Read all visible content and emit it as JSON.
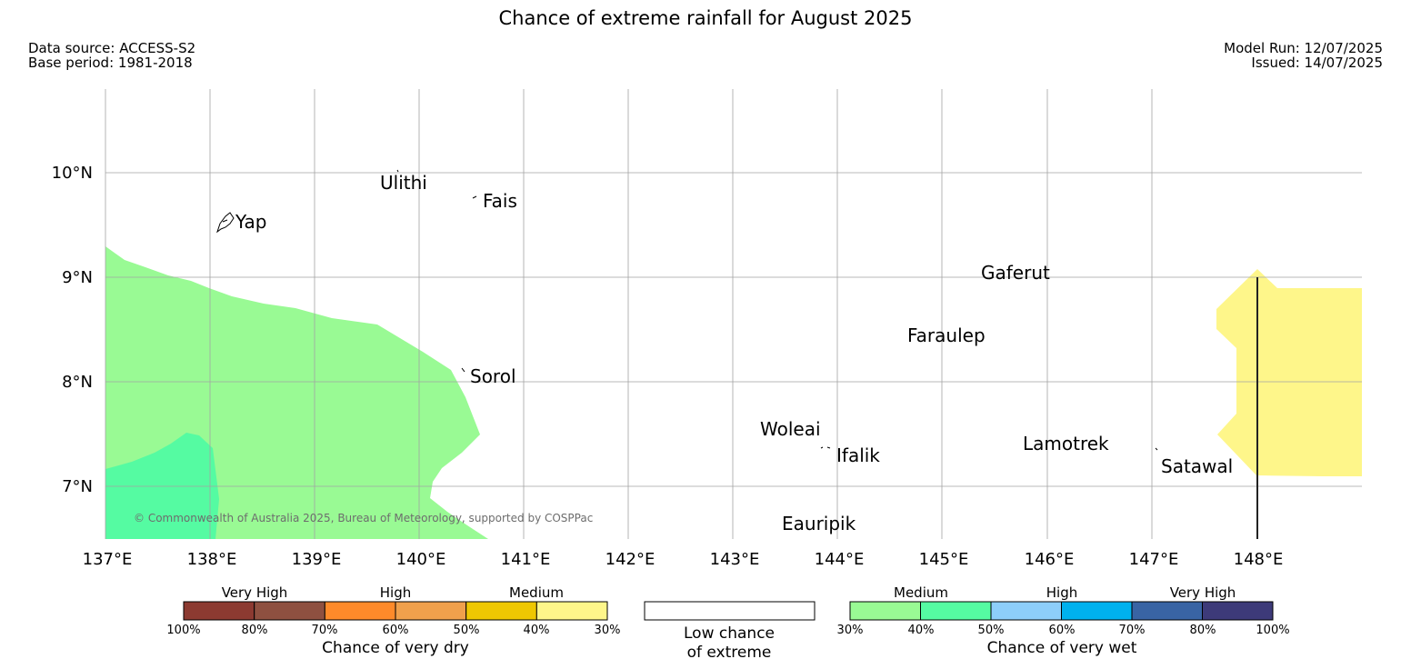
{
  "header": {
    "title": "Chance of extreme rainfall for August 2025",
    "data_source": "Data source: ACCESS-S2",
    "base_period": "Base period: 1981-2018",
    "model_run": "Model Run: 12/07/2025",
    "issued": "Issued: 14/07/2025"
  },
  "map": {
    "lon_ticks": [
      "137°E",
      "138°E",
      "139°E",
      "140°E",
      "141°E",
      "142°E",
      "143°E",
      "144°E",
      "145°E",
      "146°E",
      "147°E",
      "148°E"
    ],
    "lat_ticks": [
      "10°N",
      "9°N",
      "8°N",
      "7°N"
    ],
    "places": [
      {
        "name": "Yap"
      },
      {
        "name": "Ulithi"
      },
      {
        "name": "Fais"
      },
      {
        "name": "Sorol"
      },
      {
        "name": "Gaferut"
      },
      {
        "name": "Faraulep"
      },
      {
        "name": "Woleai"
      },
      {
        "name": "Ifalik"
      },
      {
        "name": "Eauripik"
      },
      {
        "name": "Lamotrek"
      },
      {
        "name": "Satawal"
      }
    ],
    "copyright": "© Commonwealth of Australia 2025, Bureau of Meteorology, supported by COSPPac",
    "region_colors": {
      "wet_30_40": "#99fa94",
      "wet_40_50": "#55fba2",
      "dry_30_40": "#fef68a"
    }
  },
  "legend": {
    "dry": {
      "categories": [
        "Very High",
        "High",
        "Medium"
      ],
      "colors": [
        "#8c3a31",
        "#8e5040",
        "#fe8a2a",
        "#f0a04c",
        "#eec702",
        "#fef68a"
      ],
      "ticks": [
        "100%",
        "80%",
        "70%",
        "60%",
        "50%",
        "40%",
        "30%"
      ],
      "caption": "Chance of very dry"
    },
    "low": {
      "line1": "Low chance",
      "line2": "of extreme"
    },
    "wet": {
      "categories": [
        "Medium",
        "High",
        "Very High"
      ],
      "colors": [
        "#99fa94",
        "#55fba2",
        "#8dcefa",
        "#00b1ee",
        "#3964a4",
        "#3d3a79"
      ],
      "ticks": [
        "30%",
        "40%",
        "50%",
        "60%",
        "70%",
        "80%",
        "100%"
      ],
      "caption": "Chance of very wet"
    }
  }
}
